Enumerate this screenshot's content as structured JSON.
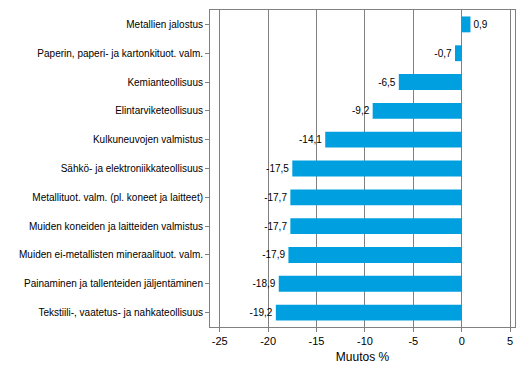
{
  "chart_data": {
    "type": "bar",
    "orientation": "horizontal",
    "categories": [
      "Metallien jalostus",
      "Paperin, paperi- ja kartonkituot. valm.",
      "Kemianteollisuus",
      "Elintarviketeollisuus",
      "Kulkuneuvojen valmistus",
      "Sähkö- ja elektroniikkateollisuus",
      "Metallituot. valm. (pl. koneet ja laitteet)",
      "Muiden koneiden ja laitteiden valmistus",
      "Muiden ei-metallisten mineraalituot. valm.",
      "Painaminen ja tallenteiden jäljentäminen",
      "Tekstiili-, vaatetus- ja nahkateollisuus"
    ],
    "values": [
      0.9,
      -0.7,
      -6.5,
      -9.2,
      -14.1,
      -17.5,
      -17.7,
      -17.7,
      -17.9,
      -18.9,
      -19.2
    ],
    "value_labels": [
      "0,9",
      "-0,7",
      "-6,5",
      "-9,2",
      "-14,1",
      "-17,5",
      "-17,7",
      "-17,7",
      "-17,9",
      "-18,9",
      "-19,2"
    ],
    "data_labels": true,
    "color": "#009fdf",
    "x_label": "Muutos %",
    "xlim": [
      -26,
      5.5
    ],
    "xticks": [
      -25,
      -20,
      -15,
      -10,
      -5,
      0,
      5
    ],
    "grid": true
  }
}
